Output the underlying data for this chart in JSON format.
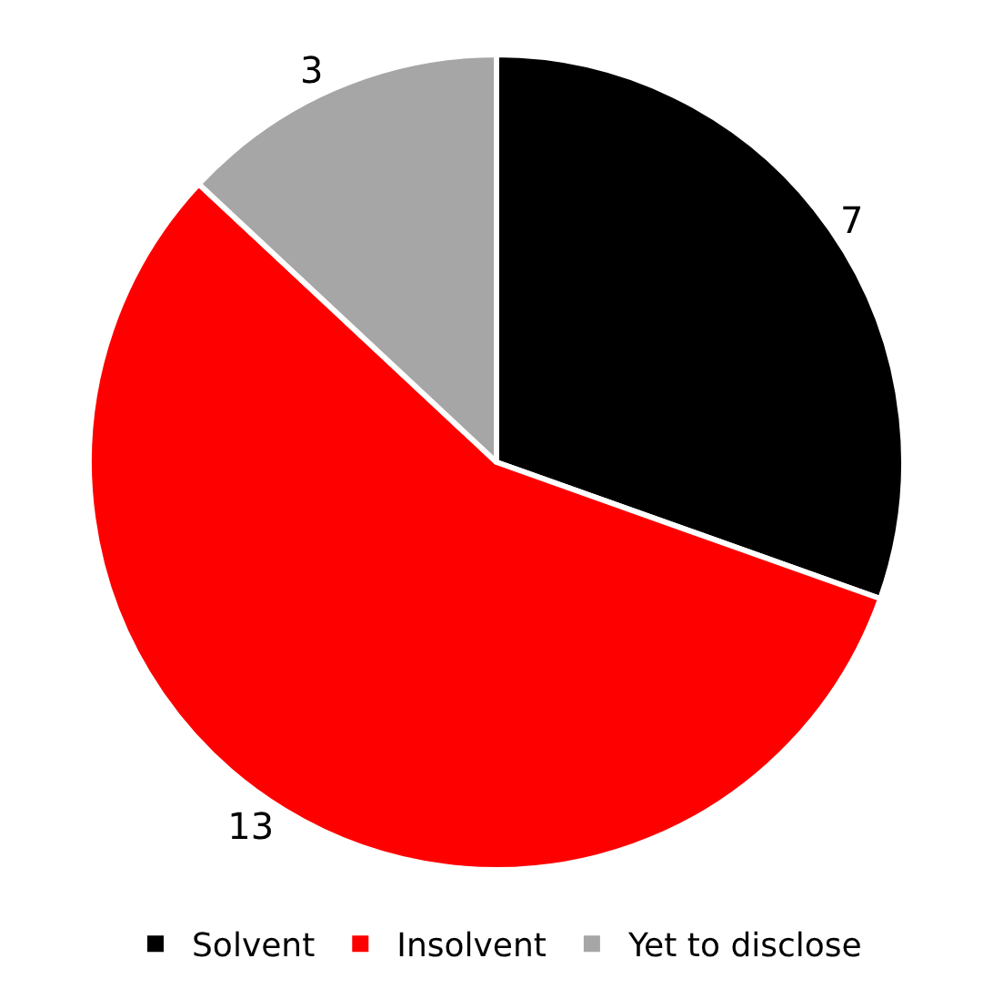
{
  "chart_data": {
    "type": "pie",
    "categories": [
      "Solvent",
      "Insolvent",
      "Yet to disclose"
    ],
    "values": [
      7,
      13,
      3
    ],
    "colors": [
      "#000000",
      "#ff0000",
      "#a6a6a6"
    ],
    "data_labels": true,
    "legend": "bottom"
  }
}
